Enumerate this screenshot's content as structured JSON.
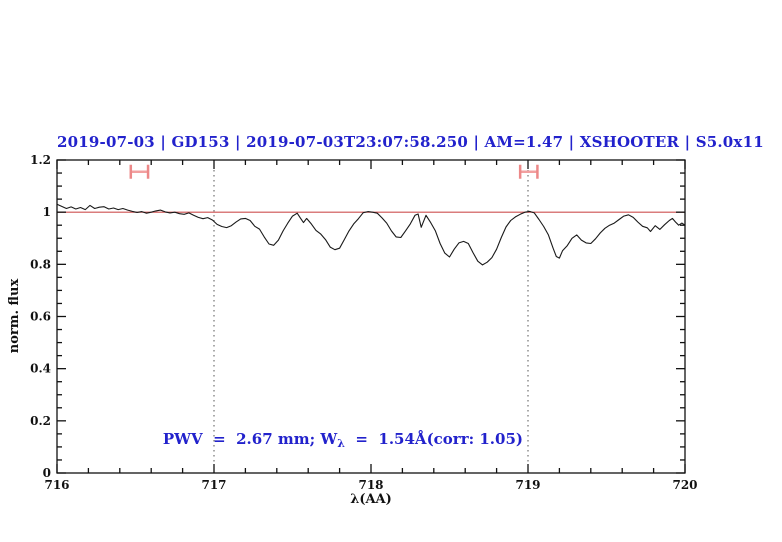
{
  "title": {
    "text": "2019-07-03 | GD153 | 2019-07-03T23:07:58.250 | AM=1.47 | XSHOOTER | S5.0x11",
    "color": "#2222cc"
  },
  "annotation": {
    "prefix": "PWV  =  2.67 mm; W",
    "sub": "λ",
    "suffix": "  =  1.54Å(corr: 1.05)",
    "color": "#2222cc"
  },
  "colors": {
    "spectrum": "#1a1a1a",
    "continuum": "#cd5050",
    "marker": "#f2a0a0",
    "marker_cap": "#ec8888",
    "vline": "#555555",
    "frame": "#111111"
  },
  "chart_data": {
    "type": "line",
    "title": "2019-07-03 | GD153 | 2019-07-03T23:07:58.250 | AM=1.47 | XSHOOTER | S5.0x11",
    "xlabel": "λ(AA)",
    "ylabel": "norm. flux",
    "xlim": [
      716,
      720
    ],
    "ylim": [
      0,
      1.2
    ],
    "xticks": [
      716,
      717,
      718,
      719,
      720
    ],
    "xtick_labels": [
      "716",
      "717",
      "718",
      "719",
      "720"
    ],
    "yticks": [
      0,
      0.2,
      0.4,
      0.6,
      0.8,
      1,
      1.2
    ],
    "ytick_labels": [
      "0",
      "0.2",
      "0.4",
      "0.6",
      "0.8",
      "1",
      "1.2"
    ],
    "x_minor_step": 0.2,
    "y_minor_step": 0.05,
    "grid": false,
    "legend": "none",
    "vlines": [
      717,
      719
    ],
    "continuum_line": {
      "y": 1.0
    },
    "band_markers": [
      {
        "x1": 716.47,
        "x2": 716.58,
        "y": 1.155
      },
      {
        "x1": 718.95,
        "x2": 719.06,
        "y": 1.155
      }
    ],
    "series": [
      {
        "name": "normalized spectrum",
        "points": [
          [
            716.0,
            1.03
          ],
          [
            716.03,
            1.022
          ],
          [
            716.06,
            1.014
          ],
          [
            716.09,
            1.02
          ],
          [
            716.12,
            1.012
          ],
          [
            716.15,
            1.018
          ],
          [
            716.18,
            1.01
          ],
          [
            716.21,
            1.026
          ],
          [
            716.24,
            1.014
          ],
          [
            716.27,
            1.019
          ],
          [
            716.3,
            1.021
          ],
          [
            716.33,
            1.012
          ],
          [
            716.36,
            1.016
          ],
          [
            716.39,
            1.01
          ],
          [
            716.42,
            1.014
          ],
          [
            716.45,
            1.008
          ],
          [
            716.48,
            1.003
          ],
          [
            716.51,
            0.999
          ],
          [
            716.54,
            1.002
          ],
          [
            716.57,
            0.996
          ],
          [
            716.6,
            1.0
          ],
          [
            716.63,
            1.005
          ],
          [
            716.66,
            1.008
          ],
          [
            716.69,
            1.001
          ],
          [
            716.72,
            0.997
          ],
          [
            716.75,
            1.0
          ],
          [
            716.78,
            0.994
          ],
          [
            716.81,
            0.992
          ],
          [
            716.84,
            0.997
          ],
          [
            716.87,
            0.988
          ],
          [
            716.9,
            0.98
          ],
          [
            716.93,
            0.975
          ],
          [
            716.96,
            0.979
          ],
          [
            716.99,
            0.97
          ],
          [
            717.02,
            0.953
          ],
          [
            717.05,
            0.945
          ],
          [
            717.08,
            0.941
          ],
          [
            717.11,
            0.948
          ],
          [
            717.14,
            0.962
          ],
          [
            717.17,
            0.974
          ],
          [
            717.2,
            0.976
          ],
          [
            717.23,
            0.968
          ],
          [
            717.26,
            0.946
          ],
          [
            717.29,
            0.935
          ],
          [
            717.32,
            0.905
          ],
          [
            717.35,
            0.878
          ],
          [
            717.38,
            0.873
          ],
          [
            717.41,
            0.893
          ],
          [
            717.44,
            0.928
          ],
          [
            717.47,
            0.958
          ],
          [
            717.5,
            0.985
          ],
          [
            717.53,
            0.996
          ],
          [
            717.55,
            0.978
          ],
          [
            717.57,
            0.96
          ],
          [
            717.59,
            0.976
          ],
          [
            717.62,
            0.955
          ],
          [
            717.65,
            0.93
          ],
          [
            717.68,
            0.916
          ],
          [
            717.71,
            0.895
          ],
          [
            717.74,
            0.866
          ],
          [
            717.77,
            0.856
          ],
          [
            717.8,
            0.862
          ],
          [
            717.83,
            0.895
          ],
          [
            717.86,
            0.928
          ],
          [
            717.89,
            0.955
          ],
          [
            717.92,
            0.975
          ],
          [
            717.95,
            0.998
          ],
          [
            717.98,
            1.002
          ],
          [
            718.01,
            1.0
          ],
          [
            718.04,
            0.996
          ],
          [
            718.07,
            0.978
          ],
          [
            718.1,
            0.958
          ],
          [
            718.13,
            0.928
          ],
          [
            718.16,
            0.905
          ],
          [
            718.19,
            0.903
          ],
          [
            718.22,
            0.928
          ],
          [
            718.25,
            0.955
          ],
          [
            718.28,
            0.988
          ],
          [
            718.3,
            0.993
          ],
          [
            718.32,
            0.942
          ],
          [
            718.35,
            0.988
          ],
          [
            718.38,
            0.96
          ],
          [
            718.41,
            0.928
          ],
          [
            718.44,
            0.88
          ],
          [
            718.47,
            0.843
          ],
          [
            718.5,
            0.828
          ],
          [
            718.53,
            0.858
          ],
          [
            718.56,
            0.882
          ],
          [
            718.59,
            0.888
          ],
          [
            718.62,
            0.88
          ],
          [
            718.65,
            0.845
          ],
          [
            718.68,
            0.812
          ],
          [
            718.71,
            0.798
          ],
          [
            718.74,
            0.808
          ],
          [
            718.77,
            0.826
          ],
          [
            718.8,
            0.858
          ],
          [
            718.83,
            0.903
          ],
          [
            718.86,
            0.943
          ],
          [
            718.89,
            0.968
          ],
          [
            718.92,
            0.982
          ],
          [
            718.95,
            0.992
          ],
          [
            718.98,
            1.0
          ],
          [
            719.01,
            1.003
          ],
          [
            719.04,
            0.997
          ],
          [
            719.07,
            0.972
          ],
          [
            719.1,
            0.945
          ],
          [
            719.13,
            0.913
          ],
          [
            719.16,
            0.862
          ],
          [
            719.18,
            0.83
          ],
          [
            719.2,
            0.824
          ],
          [
            719.22,
            0.852
          ],
          [
            719.25,
            0.872
          ],
          [
            719.28,
            0.9
          ],
          [
            719.31,
            0.913
          ],
          [
            719.34,
            0.893
          ],
          [
            719.37,
            0.882
          ],
          [
            719.4,
            0.88
          ],
          [
            719.43,
            0.898
          ],
          [
            719.46,
            0.92
          ],
          [
            719.49,
            0.938
          ],
          [
            719.52,
            0.95
          ],
          [
            719.55,
            0.958
          ],
          [
            719.58,
            0.972
          ],
          [
            719.61,
            0.985
          ],
          [
            719.64,
            0.99
          ],
          [
            719.67,
            0.98
          ],
          [
            719.7,
            0.962
          ],
          [
            719.73,
            0.946
          ],
          [
            719.76,
            0.94
          ],
          [
            719.78,
            0.926
          ],
          [
            719.81,
            0.948
          ],
          [
            719.84,
            0.934
          ],
          [
            719.87,
            0.952
          ],
          [
            719.9,
            0.968
          ],
          [
            719.92,
            0.976
          ],
          [
            719.94,
            0.962
          ],
          [
            719.96,
            0.95
          ],
          [
            719.98,
            0.958
          ],
          [
            720.0,
            0.95
          ]
        ]
      }
    ]
  }
}
